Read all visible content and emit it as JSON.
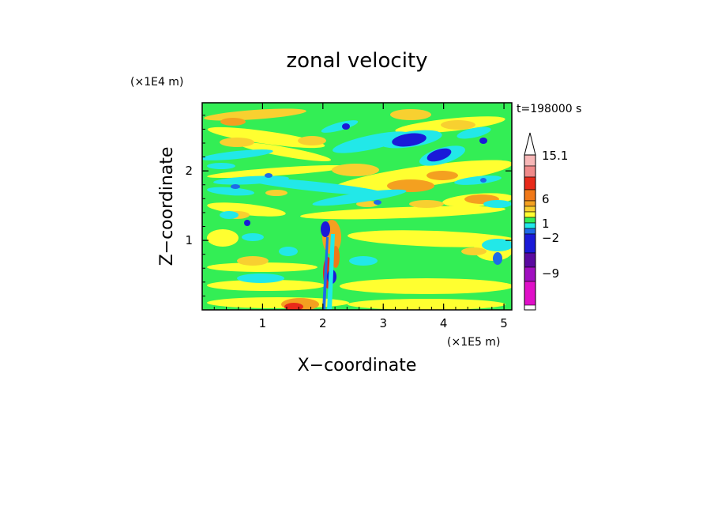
{
  "chart_data": {
    "type": "heatmap",
    "title": "zonal velocity",
    "xlabel": "X−coordinate",
    "ylabel": "Z−coordinate",
    "x_unit": "(×1E5 m)",
    "y_unit": "(×1E4 m)",
    "time_label": "t=198000 s",
    "xlim": [
      0,
      5.13
    ],
    "ylim": [
      0,
      2.98
    ],
    "x_ticks": [
      "1",
      "2",
      "3",
      "4",
      "5"
    ],
    "y_ticks": [
      "1",
      "2"
    ],
    "colorbar": {
      "tick_labels": [
        "15.1",
        "6",
        "1",
        "−2",
        "−9"
      ],
      "levels_top_to_bottom": [
        {
          "color": "#f7b7b7"
        },
        {
          "color": "#f08a8a"
        },
        {
          "color": "#e82a1a"
        },
        {
          "color": "#f07818"
        },
        {
          "color": "#f4a020"
        },
        {
          "color": "#f8d030"
        },
        {
          "color": "#ffff30"
        },
        {
          "color": "#33ee55"
        },
        {
          "color": "#22e8e8"
        },
        {
          "color": "#1e6be8"
        },
        {
          "color": "#1a1ad8"
        },
        {
          "color": "#5a0aa0"
        },
        {
          "color": "#a010c0"
        },
        {
          "color": "#e010c8"
        }
      ]
    },
    "colors": {
      "green": "#33ee55",
      "yellow": "#ffff30",
      "gold": "#f8d030",
      "orange": "#f4a020",
      "dark_orange": "#f07818",
      "red": "#e82a1a",
      "cyan": "#22e8e8",
      "blue": "#1e6be8",
      "dark_blue": "#1a1ad8"
    }
  }
}
